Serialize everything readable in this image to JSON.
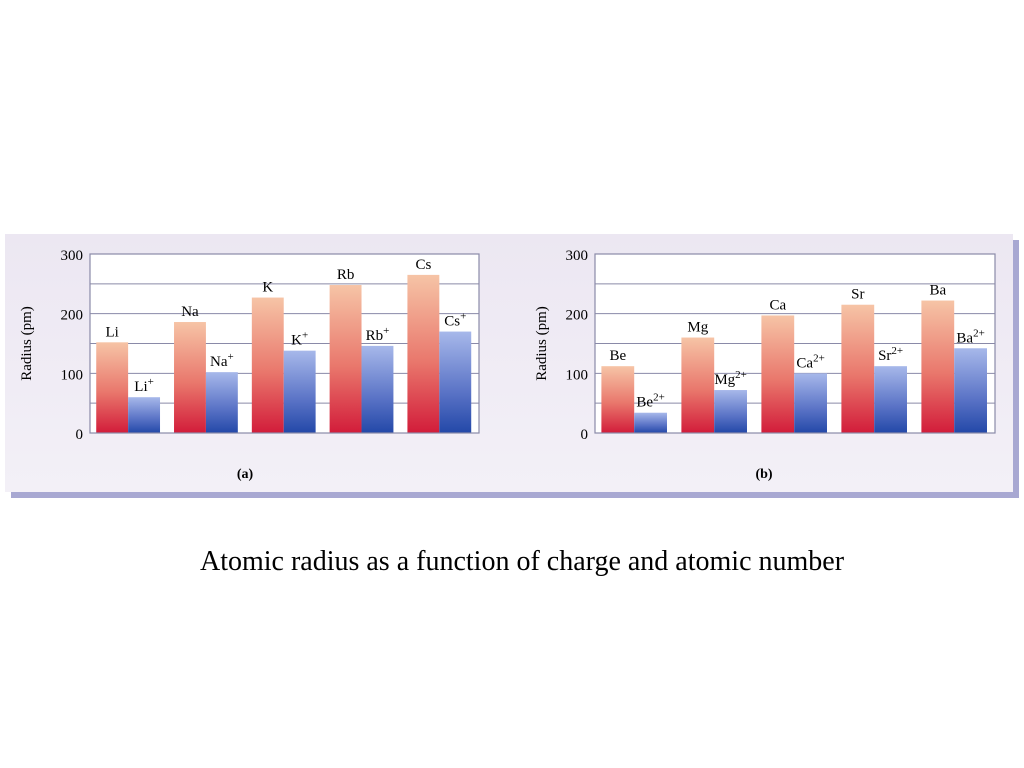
{
  "caption": "Atomic radius as a function of charge and atomic number",
  "colors": {
    "atom_top": "#f6c4a6",
    "atom_bottom": "#d21c3a",
    "ion_top": "#a7b8ea",
    "ion_bottom": "#2348a8",
    "frame": "#8a8aa8",
    "panel_bg": "#efebf4"
  },
  "chart_data": [
    {
      "type": "bar",
      "panel_label": "(a)",
      "ylabel": "Radius (pm)",
      "ylim": [
        0,
        300
      ],
      "yticks": [
        "0",
        "100",
        "200",
        "300"
      ],
      "grid": true,
      "groups": [
        {
          "atom": {
            "symbol": "Li",
            "charge": "",
            "value": 152
          },
          "ion": {
            "symbol": "Li",
            "charge": "+",
            "value": 60
          }
        },
        {
          "atom": {
            "symbol": "Na",
            "charge": "",
            "value": 186
          },
          "ion": {
            "symbol": "Na",
            "charge": "+",
            "value": 102
          }
        },
        {
          "atom": {
            "symbol": "K",
            "charge": "",
            "value": 227
          },
          "ion": {
            "symbol": "K",
            "charge": "+",
            "value": 138
          }
        },
        {
          "atom": {
            "symbol": "Rb",
            "charge": "",
            "value": 248
          },
          "ion": {
            "symbol": "Rb",
            "charge": "+",
            "value": 146
          }
        },
        {
          "atom": {
            "symbol": "Cs",
            "charge": "",
            "value": 265
          },
          "ion": {
            "symbol": "Cs",
            "charge": "+",
            "value": 170
          }
        }
      ]
    },
    {
      "type": "bar",
      "panel_label": "(b)",
      "ylabel": "Radius (pm)",
      "ylim": [
        0,
        300
      ],
      "yticks": [
        "0",
        "100",
        "200",
        "300"
      ],
      "grid": true,
      "groups": [
        {
          "atom": {
            "symbol": "Be",
            "charge": "",
            "value": 112
          },
          "ion": {
            "symbol": "Be",
            "charge": "2+",
            "value": 34
          }
        },
        {
          "atom": {
            "symbol": "Mg",
            "charge": "",
            "value": 160
          },
          "ion": {
            "symbol": "Mg",
            "charge": "2+",
            "value": 72
          }
        },
        {
          "atom": {
            "symbol": "Ca",
            "charge": "",
            "value": 197
          },
          "ion": {
            "symbol": "Ca",
            "charge": "2+",
            "value": 100
          }
        },
        {
          "atom": {
            "symbol": "Sr",
            "charge": "",
            "value": 215
          },
          "ion": {
            "symbol": "Sr",
            "charge": "2+",
            "value": 112
          }
        },
        {
          "atom": {
            "symbol": "Ba",
            "charge": "",
            "value": 222
          },
          "ion": {
            "symbol": "Ba",
            "charge": "2+",
            "value": 142
          }
        }
      ]
    }
  ]
}
